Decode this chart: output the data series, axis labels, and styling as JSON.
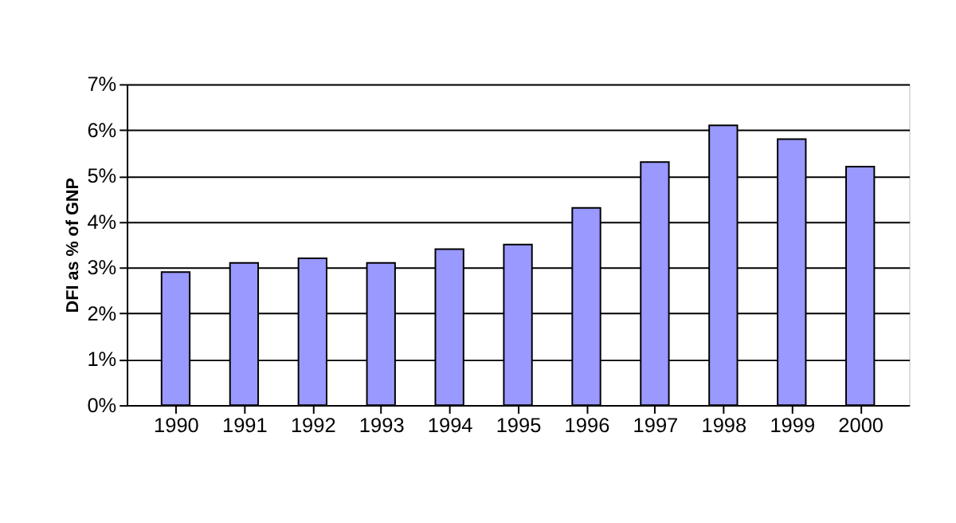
{
  "chart_data": {
    "type": "bar",
    "ylabel": "DFI as % of GNP",
    "categories": [
      "1990",
      "1991",
      "1992",
      "1993",
      "1994",
      "1995",
      "1996",
      "1997",
      "1998",
      "1999",
      "2000"
    ],
    "values": [
      2.9,
      3.1,
      3.2,
      3.1,
      3.4,
      3.5,
      4.3,
      5.3,
      6.1,
      5.8,
      5.2
    ],
    "color": "#9999ff",
    "ylim": [
      0,
      7
    ],
    "yticks": [
      {
        "value": 0,
        "label": "0%"
      },
      {
        "value": 1,
        "label": "1%"
      },
      {
        "value": 2,
        "label": "2%"
      },
      {
        "value": 3,
        "label": "3%"
      },
      {
        "value": 4,
        "label": "4%"
      },
      {
        "value": 5,
        "label": "5%"
      },
      {
        "value": 6,
        "label": "6%"
      },
      {
        "value": 7,
        "label": "7%"
      }
    ],
    "grid": "y"
  }
}
